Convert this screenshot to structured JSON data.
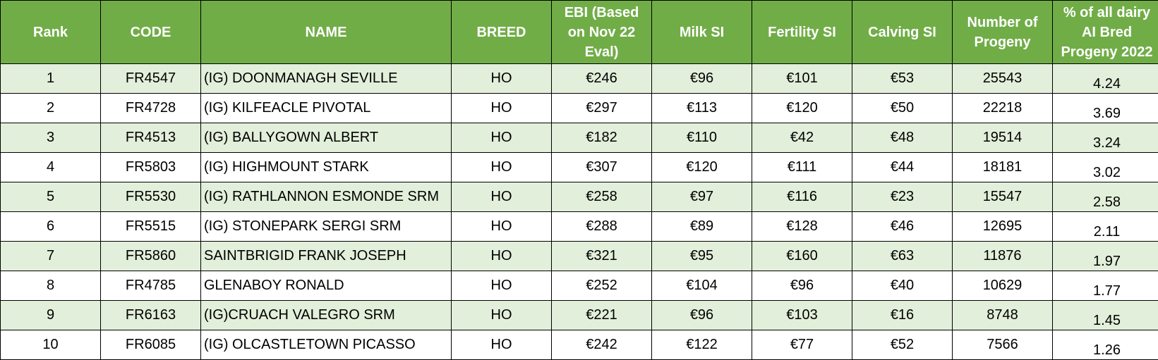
{
  "header": {
    "rank": "Rank",
    "code": "CODE",
    "name": "NAME",
    "breed": "BREED",
    "ebi": "EBI (Based on Nov 22 Eval)",
    "milk_si": "Milk SI",
    "fertility_si": "Fertility SI",
    "calving_si": "Calving SI",
    "progeny": "Number of Progeny",
    "pct": "% of all dairy AI Bred Progeny 2022"
  },
  "rows": [
    {
      "rank": "1",
      "code": "FR4547",
      "name": "(IG) DOONMANAGH SEVILLE",
      "breed": "HO",
      "ebi": "€246",
      "milk_si": "€96",
      "fertility_si": "€101",
      "calving_si": "€53",
      "progeny": "25543",
      "pct": "4.24"
    },
    {
      "rank": "2",
      "code": "FR4728",
      "name": "(IG) KILFEACLE PIVOTAL",
      "breed": "HO",
      "ebi": "€297",
      "milk_si": "€113",
      "fertility_si": "€120",
      "calving_si": "€50",
      "progeny": "22218",
      "pct": "3.69"
    },
    {
      "rank": "3",
      "code": "FR4513",
      "name": "(IG) BALLYGOWN ALBERT",
      "breed": "HO",
      "ebi": "€182",
      "milk_si": "€110",
      "fertility_si": "€42",
      "calving_si": "€48",
      "progeny": "19514",
      "pct": "3.24"
    },
    {
      "rank": "4",
      "code": "FR5803",
      "name": "(IG) HIGHMOUNT STARK",
      "breed": "HO",
      "ebi": "€307",
      "milk_si": "€120",
      "fertility_si": "€111",
      "calving_si": "€44",
      "progeny": "18181",
      "pct": "3.02"
    },
    {
      "rank": "5",
      "code": "FR5530",
      "name": "(IG) RATHLANNON ESMONDE SRM",
      "breed": "HO",
      "ebi": "€258",
      "milk_si": "€97",
      "fertility_si": "€116",
      "calving_si": "€23",
      "progeny": "15547",
      "pct": "2.58"
    },
    {
      "rank": "6",
      "code": "FR5515",
      "name": "(IG) STONEPARK SERGI SRM",
      "breed": "HO",
      "ebi": "€288",
      "milk_si": "€89",
      "fertility_si": "€128",
      "calving_si": "€46",
      "progeny": "12695",
      "pct": "2.11"
    },
    {
      "rank": "7",
      "code": "FR5860",
      "name": "SAINTBRIGID FRANK JOSEPH",
      "breed": "HO",
      "ebi": "€321",
      "milk_si": "€95",
      "fertility_si": "€160",
      "calving_si": "€63",
      "progeny": "11876",
      "pct": "1.97"
    },
    {
      "rank": "8",
      "code": "FR4785",
      "name": "GLENABOY RONALD",
      "breed": "HO",
      "ebi": "€252",
      "milk_si": "€104",
      "fertility_si": "€96",
      "calving_si": "€40",
      "progeny": "10629",
      "pct": "1.77"
    },
    {
      "rank": "9",
      "code": "FR6163",
      "name": "(IG)CRUACH VALEGRO SRM",
      "breed": "HO",
      "ebi": "€221",
      "milk_si": "€96",
      "fertility_si": "€103",
      "calving_si": "€16",
      "progeny": "8748",
      "pct": "1.45"
    },
    {
      "rank": "10",
      "code": "FR6085",
      "name": "(IG) OLCASTLETOWN PICASSO",
      "breed": "HO",
      "ebi": "€242",
      "milk_si": "€122",
      "fertility_si": "€77",
      "calving_si": "€52",
      "progeny": "7566",
      "pct": "1.26"
    }
  ]
}
